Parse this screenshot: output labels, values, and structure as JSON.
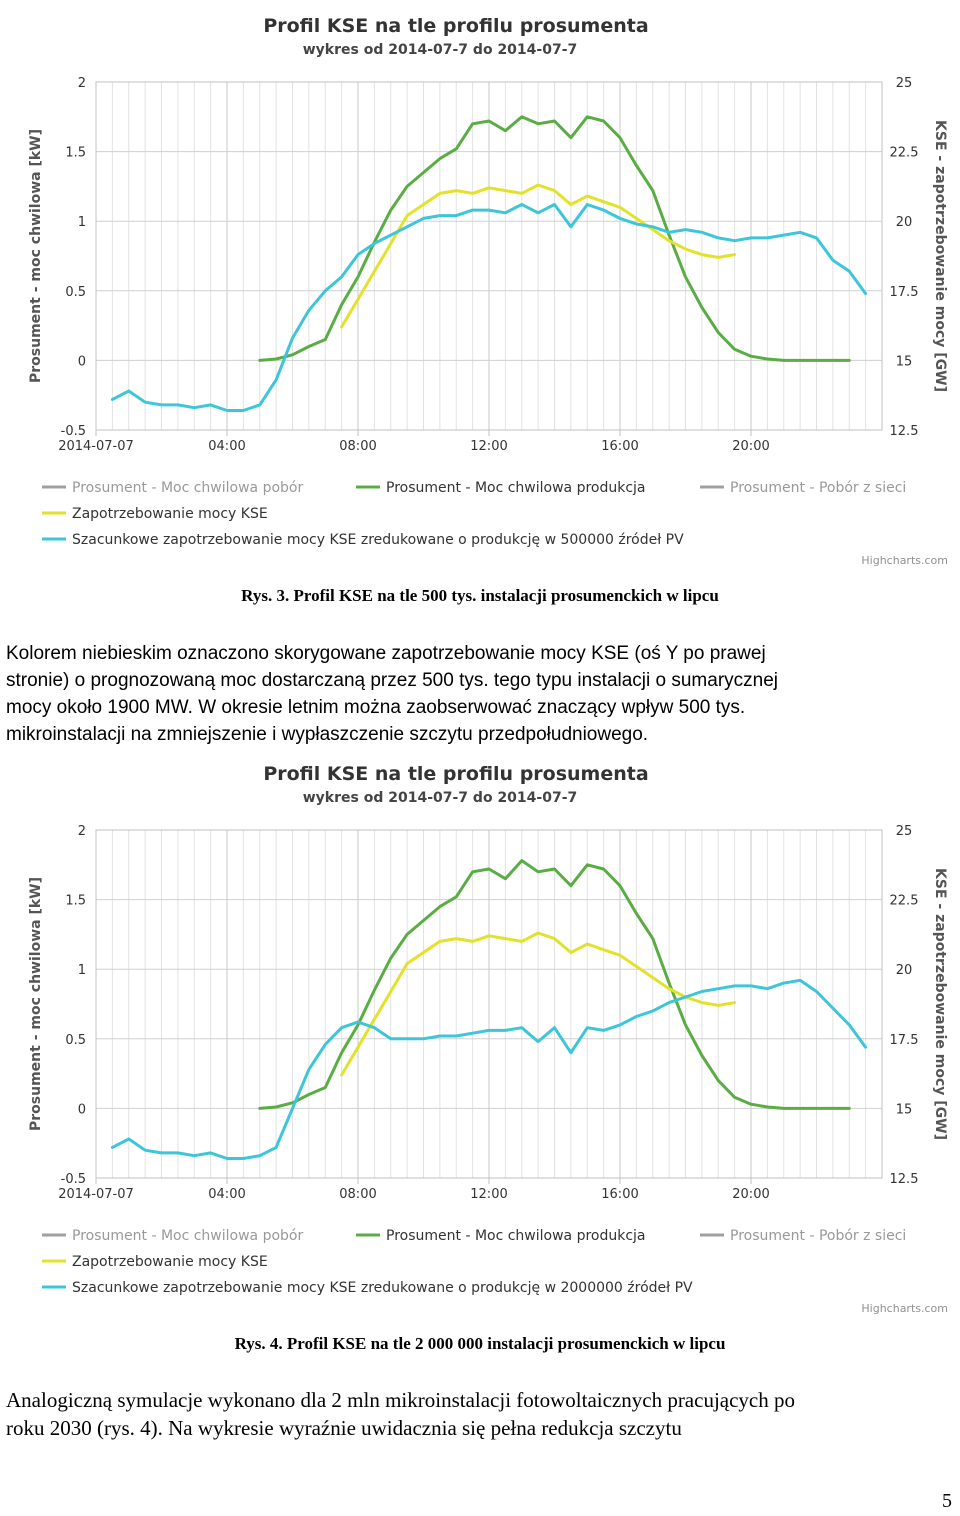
{
  "chart_data": [
    {
      "type": "line",
      "title": "Profil KSE na tle profilu prosumenta",
      "subtitle": "wykres od 2014-07-7 do 2014-07-7",
      "xlabel": "",
      "x_ticks": [
        "2014-07-07",
        "04:00",
        "08:00",
        "12:00",
        "16:00",
        "20:00"
      ],
      "x_range_hours": [
        0,
        24
      ],
      "ylabel": "Prosument - moc chwilowa [kW]",
      "ylim": [
        -0.5,
        2
      ],
      "y_ticks": [
        "2",
        "1.5",
        "1",
        "0.5",
        "0",
        "-0.5"
      ],
      "y2label": "KSE - zapotrzebowanie mocy [GW]",
      "y2lim": [
        12.5,
        25
      ],
      "y2_ticks": [
        "25",
        "22.5",
        "20",
        "17.5",
        "15",
        "12.5"
      ],
      "grid": true,
      "legend_placement": "bottom",
      "colors": {
        "green": "#5aac44",
        "yellow": "#e2e22a",
        "cyan": "#3cc6d8",
        "gray": "#a0a0a0"
      },
      "series": [
        {
          "name": "Prosument - Moc chwilowa pobór",
          "legend_color": "#a0a0a0",
          "dimmed": true,
          "axis": "left",
          "points": []
        },
        {
          "name": "Prosument - Moc chwilowa produkcja",
          "legend_color": "#5aac44",
          "dimmed": false,
          "axis": "left",
          "points": [
            [
              5,
              0
            ],
            [
              5.5,
              0.01
            ],
            [
              6,
              0.04
            ],
            [
              6.5,
              0.1
            ],
            [
              7,
              0.15
            ],
            [
              7.5,
              0.4
            ],
            [
              8,
              0.6
            ],
            [
              8.5,
              0.85
            ],
            [
              9,
              1.08
            ],
            [
              9.5,
              1.25
            ],
            [
              10,
              1.35
            ],
            [
              10.5,
              1.45
            ],
            [
              11,
              1.52
            ],
            [
              11.5,
              1.7
            ],
            [
              12,
              1.72
            ],
            [
              12.5,
              1.65
            ],
            [
              13,
              1.75
            ],
            [
              13.5,
              1.7
            ],
            [
              14,
              1.72
            ],
            [
              14.5,
              1.6
            ],
            [
              15,
              1.75
            ],
            [
              15.5,
              1.72
            ],
            [
              16,
              1.6
            ],
            [
              16.5,
              1.4
            ],
            [
              17,
              1.22
            ],
            [
              17.5,
              0.9
            ],
            [
              18,
              0.6
            ],
            [
              18.5,
              0.38
            ],
            [
              19,
              0.2
            ],
            [
              19.5,
              0.08
            ],
            [
              20,
              0.03
            ],
            [
              20.5,
              0.01
            ],
            [
              21,
              0
            ],
            [
              22,
              0
            ],
            [
              23,
              0
            ]
          ]
        },
        {
          "name": "Prosument - Pobór z sieci",
          "legend_color": "#a0a0a0",
          "dimmed": true,
          "axis": "left",
          "points": []
        },
        {
          "name": "Zapotrzebowanie mocy KSE",
          "legend_color": "#e2e22a",
          "dimmed": false,
          "axis": "right",
          "points": [
            [
              7.5,
              16.2
            ],
            [
              8,
              17.2
            ],
            [
              8.5,
              18.2
            ],
            [
              9,
              19.2
            ],
            [
              9.5,
              20.2
            ],
            [
              10,
              20.6
            ],
            [
              10.5,
              21
            ],
            [
              11,
              21.1
            ],
            [
              11.5,
              21
            ],
            [
              12,
              21.2
            ],
            [
              12.5,
              21.1
            ],
            [
              13,
              21
            ],
            [
              13.5,
              21.3
            ],
            [
              14,
              21.1
            ],
            [
              14.5,
              20.6
            ],
            [
              15,
              20.9
            ],
            [
              15.5,
              20.7
            ],
            [
              16,
              20.5
            ],
            [
              16.5,
              20.1
            ],
            [
              17,
              19.7
            ],
            [
              17.5,
              19.3
            ],
            [
              18,
              19
            ],
            [
              18.5,
              18.8
            ],
            [
              19,
              18.7
            ],
            [
              19.5,
              18.8
            ]
          ]
        },
        {
          "name": "Szacunkowe zapotrzebowanie mocy KSE zredukowane o produkcję w 500000 źródeł PV",
          "legend_color": "#3cc6d8",
          "dimmed": false,
          "axis": "right",
          "points": [
            [
              0.5,
              13.6
            ],
            [
              1,
              13.9
            ],
            [
              1.5,
              13.5
            ],
            [
              2,
              13.4
            ],
            [
              2.5,
              13.4
            ],
            [
              3,
              13.3
            ],
            [
              3.5,
              13.4
            ],
            [
              4,
              13.2
            ],
            [
              4.5,
              13.2
            ],
            [
              5,
              13.4
            ],
            [
              5.5,
              14.3
            ],
            [
              6,
              15.8
            ],
            [
              6.5,
              16.8
            ],
            [
              7,
              17.5
            ],
            [
              7.5,
              18
            ],
            [
              8,
              18.8
            ],
            [
              8.5,
              19.2
            ],
            [
              9,
              19.5
            ],
            [
              9.5,
              19.8
            ],
            [
              10,
              20.1
            ],
            [
              10.5,
              20.2
            ],
            [
              11,
              20.2
            ],
            [
              11.5,
              20.4
            ],
            [
              12,
              20.4
            ],
            [
              12.5,
              20.3
            ],
            [
              13,
              20.6
            ],
            [
              13.5,
              20.3
            ],
            [
              14,
              20.6
            ],
            [
              14.5,
              19.8
            ],
            [
              15,
              20.6
            ],
            [
              15.5,
              20.4
            ],
            [
              16,
              20.1
            ],
            [
              16.5,
              19.9
            ],
            [
              17,
              19.8
            ],
            [
              17.5,
              19.6
            ],
            [
              18,
              19.7
            ],
            [
              18.5,
              19.6
            ],
            [
              19,
              19.4
            ],
            [
              19.5,
              19.3
            ],
            [
              20,
              19.4
            ],
            [
              20.5,
              19.4
            ],
            [
              21,
              19.5
            ],
            [
              21.5,
              19.6
            ],
            [
              22,
              19.4
            ],
            [
              22.5,
              18.6
            ],
            [
              23,
              18.2
            ],
            [
              23.5,
              17.4
            ]
          ]
        }
      ],
      "credit": "Highcharts.com"
    },
    {
      "type": "line",
      "title": "Profil KSE na tle profilu prosumenta",
      "subtitle": "wykres od 2014-07-7 do 2014-07-7",
      "xlabel": "",
      "x_ticks": [
        "2014-07-07",
        "04:00",
        "08:00",
        "12:00",
        "16:00",
        "20:00"
      ],
      "x_range_hours": [
        0,
        24
      ],
      "ylabel": "Prosument - moc chwilowa [kW]",
      "ylim": [
        -0.5,
        2
      ],
      "y_ticks": [
        "2",
        "1.5",
        "1",
        "0.5",
        "0",
        "-0.5"
      ],
      "y2label": "KSE - zapotrzebowanie mocy [GW]",
      "y2lim": [
        12.5,
        25
      ],
      "y2_ticks": [
        "25",
        "22.5",
        "20",
        "17.5",
        "15",
        "12.5"
      ],
      "grid": true,
      "legend_placement": "bottom",
      "colors": {
        "green": "#5aac44",
        "yellow": "#e2e22a",
        "cyan": "#3cc6d8",
        "gray": "#a0a0a0"
      },
      "series": [
        {
          "name": "Prosument - Moc chwilowa pobór",
          "legend_color": "#a0a0a0",
          "dimmed": true,
          "axis": "left",
          "points": []
        },
        {
          "name": "Prosument - Moc chwilowa produkcja",
          "legend_color": "#5aac44",
          "dimmed": false,
          "axis": "left",
          "points": [
            [
              5,
              0
            ],
            [
              5.5,
              0.01
            ],
            [
              6,
              0.04
            ],
            [
              6.5,
              0.1
            ],
            [
              7,
              0.15
            ],
            [
              7.5,
              0.4
            ],
            [
              8,
              0.6
            ],
            [
              8.5,
              0.85
            ],
            [
              9,
              1.08
            ],
            [
              9.5,
              1.25
            ],
            [
              10,
              1.35
            ],
            [
              10.5,
              1.45
            ],
            [
              11,
              1.52
            ],
            [
              11.5,
              1.7
            ],
            [
              12,
              1.72
            ],
            [
              12.5,
              1.65
            ],
            [
              13,
              1.78
            ],
            [
              13.5,
              1.7
            ],
            [
              14,
              1.72
            ],
            [
              14.5,
              1.6
            ],
            [
              15,
              1.75
            ],
            [
              15.5,
              1.72
            ],
            [
              16,
              1.6
            ],
            [
              16.5,
              1.4
            ],
            [
              17,
              1.22
            ],
            [
              17.5,
              0.9
            ],
            [
              18,
              0.6
            ],
            [
              18.5,
              0.38
            ],
            [
              19,
              0.2
            ],
            [
              19.5,
              0.08
            ],
            [
              20,
              0.03
            ],
            [
              20.5,
              0.01
            ],
            [
              21,
              0
            ],
            [
              22,
              0
            ],
            [
              23,
              0
            ]
          ]
        },
        {
          "name": "Prosument - Pobór z sieci",
          "legend_color": "#a0a0a0",
          "dimmed": true,
          "axis": "left",
          "points": []
        },
        {
          "name": "Zapotrzebowanie mocy KSE",
          "legend_color": "#e2e22a",
          "dimmed": false,
          "axis": "right",
          "points": [
            [
              7.5,
              16.2
            ],
            [
              8,
              17.2
            ],
            [
              8.5,
              18.2
            ],
            [
              9,
              19.2
            ],
            [
              9.5,
              20.2
            ],
            [
              10,
              20.6
            ],
            [
              10.5,
              21
            ],
            [
              11,
              21.1
            ],
            [
              11.5,
              21
            ],
            [
              12,
              21.2
            ],
            [
              12.5,
              21.1
            ],
            [
              13,
              21
            ],
            [
              13.5,
              21.3
            ],
            [
              14,
              21.1
            ],
            [
              14.5,
              20.6
            ],
            [
              15,
              20.9
            ],
            [
              15.5,
              20.7
            ],
            [
              16,
              20.5
            ],
            [
              16.5,
              20.1
            ],
            [
              17,
              19.7
            ],
            [
              17.5,
              19.3
            ],
            [
              18,
              19
            ],
            [
              18.5,
              18.8
            ],
            [
              19,
              18.7
            ],
            [
              19.5,
              18.8
            ]
          ]
        },
        {
          "name": "Szacunkowe zapotrzebowanie mocy KSE zredukowane o produkcję w 2000000 źródeł PV",
          "legend_color": "#3cc6d8",
          "dimmed": false,
          "axis": "right",
          "points": [
            [
              0.5,
              13.6
            ],
            [
              1,
              13.9
            ],
            [
              1.5,
              13.5
            ],
            [
              2,
              13.4
            ],
            [
              2.5,
              13.4
            ],
            [
              3,
              13.3
            ],
            [
              3.5,
              13.4
            ],
            [
              4,
              13.2
            ],
            [
              4.5,
              13.2
            ],
            [
              5,
              13.3
            ],
            [
              5.5,
              13.6
            ],
            [
              6,
              15
            ],
            [
              6.5,
              16.4
            ],
            [
              7,
              17.3
            ],
            [
              7.5,
              17.9
            ],
            [
              8,
              18.1
            ],
            [
              8.5,
              17.9
            ],
            [
              9,
              17.5
            ],
            [
              9.5,
              17.5
            ],
            [
              10,
              17.5
            ],
            [
              10.5,
              17.6
            ],
            [
              11,
              17.6
            ],
            [
              11.5,
              17.7
            ],
            [
              12,
              17.8
            ],
            [
              12.5,
              17.8
            ],
            [
              13,
              17.9
            ],
            [
              13.5,
              17.4
            ],
            [
              14,
              17.9
            ],
            [
              14.5,
              17
            ],
            [
              15,
              17.9
            ],
            [
              15.5,
              17.8
            ],
            [
              16,
              18
            ],
            [
              16.5,
              18.3
            ],
            [
              17,
              18.5
            ],
            [
              17.5,
              18.8
            ],
            [
              18,
              19
            ],
            [
              18.5,
              19.2
            ],
            [
              19,
              19.3
            ],
            [
              19.5,
              19.4
            ],
            [
              20,
              19.4
            ],
            [
              20.5,
              19.3
            ],
            [
              21,
              19.5
            ],
            [
              21.5,
              19.6
            ],
            [
              22,
              19.2
            ],
            [
              22.5,
              18.6
            ],
            [
              23,
              18
            ],
            [
              23.5,
              17.2
            ]
          ]
        }
      ],
      "credit": "Highcharts.com"
    }
  ],
  "captions": [
    "Rys. 3. Profil KSE na tle 500 tys. instalacji prosumenckich w lipcu",
    "Rys. 4. Profil KSE na tle 2 000 000 instalacji prosumenckich w lipcu"
  ],
  "paragraph1": {
    "line1": "Kolorem niebieskim oznaczono skorygowane zapotrzebowanie mocy KSE (oś Y po prawej",
    "line2": "stronie) o prognozowaną moc dostarczaną przez 500 tys. tego typu instalacji o sumarycznej",
    "line3": "mocy około 1900 MW. W okresie letnim można zaobserwować znaczący wpływ 500 tys.",
    "line4": "mikroinstalacji na zmniejszenie i wypłaszczenie szczytu przedpołudniowego."
  },
  "paragraph2": {
    "line1": "Analogiczną symulacje wykonano dla 2 mln mikroinstalacji fotowoltaicznych pracujących po",
    "line2": "roku 2030 (rys. 4). Na wykresie wyraźnie uwidacznia się pełna redukcja szczytu"
  },
  "page_number": "5"
}
